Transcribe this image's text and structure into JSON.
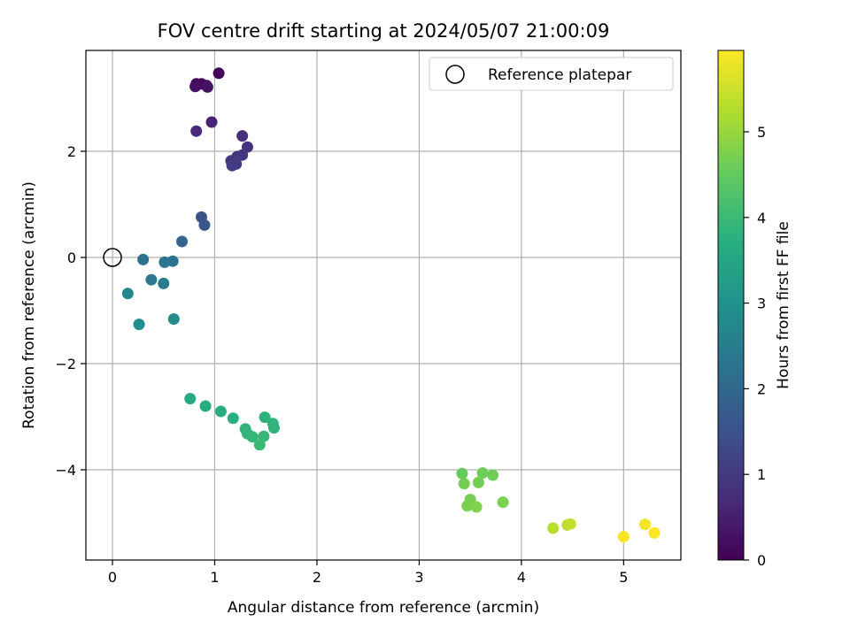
{
  "chart_data": {
    "type": "scatter",
    "title": "FOV centre drift starting at 2024/05/07 21:00:09",
    "xlabel": "Angular distance from reference (arcmin)",
    "ylabel": "Rotation from reference (arcmin)",
    "xlim": [
      -0.26,
      5.56
    ],
    "ylim": [
      -5.7,
      3.9
    ],
    "xticks": [
      0,
      1,
      2,
      3,
      4,
      5
    ],
    "yticks": [
      -4,
      -2,
      0,
      2
    ],
    "grid": true,
    "colormap": "viridis",
    "colorbar": {
      "label": "Hours from first FF file",
      "range": [
        0,
        5.95
      ],
      "ticks": [
        0,
        1,
        2,
        3,
        4,
        5
      ]
    },
    "legend": {
      "position": "top-right",
      "entries": [
        {
          "label": "Reference platepar",
          "marker": "open-circle"
        }
      ]
    },
    "reference_point": {
      "x": 0,
      "y": 0
    },
    "points": [
      {
        "x": 1.04,
        "y": 3.47,
        "t": 0.05
      },
      {
        "x": 0.82,
        "y": 3.27,
        "t": 0.1
      },
      {
        "x": 0.87,
        "y": 3.27,
        "t": 0.15
      },
      {
        "x": 0.92,
        "y": 3.24,
        "t": 0.2
      },
      {
        "x": 0.81,
        "y": 3.22,
        "t": 0.25
      },
      {
        "x": 0.93,
        "y": 3.21,
        "t": 0.3
      },
      {
        "x": 0.97,
        "y": 2.55,
        "t": 0.6
      },
      {
        "x": 0.82,
        "y": 2.38,
        "t": 0.7
      },
      {
        "x": 1.27,
        "y": 2.29,
        "t": 0.8
      },
      {
        "x": 1.32,
        "y": 2.08,
        "t": 0.85
      },
      {
        "x": 1.27,
        "y": 1.93,
        "t": 0.9
      },
      {
        "x": 1.22,
        "y": 1.9,
        "t": 0.92
      },
      {
        "x": 1.16,
        "y": 1.82,
        "t": 0.95
      },
      {
        "x": 1.21,
        "y": 1.76,
        "t": 1.0
      },
      {
        "x": 1.17,
        "y": 1.73,
        "t": 1.05
      },
      {
        "x": 0.87,
        "y": 0.76,
        "t": 1.5
      },
      {
        "x": 0.9,
        "y": 0.61,
        "t": 1.6
      },
      {
        "x": 0.68,
        "y": 0.3,
        "t": 1.9
      },
      {
        "x": 0.3,
        "y": -0.04,
        "t": 2.2
      },
      {
        "x": 0.59,
        "y": -0.07,
        "t": 2.25
      },
      {
        "x": 0.51,
        "y": -0.09,
        "t": 2.3
      },
      {
        "x": 0.38,
        "y": -0.42,
        "t": 2.4
      },
      {
        "x": 0.5,
        "y": -0.49,
        "t": 2.45
      },
      {
        "x": 0.15,
        "y": -0.68,
        "t": 2.7
      },
      {
        "x": 0.6,
        "y": -1.16,
        "t": 2.8
      },
      {
        "x": 0.26,
        "y": -1.26,
        "t": 2.85
      },
      {
        "x": 0.76,
        "y": -2.66,
        "t": 3.6
      },
      {
        "x": 0.91,
        "y": -2.8,
        "t": 3.65
      },
      {
        "x": 1.06,
        "y": -2.9,
        "t": 3.7
      },
      {
        "x": 1.18,
        "y": -3.03,
        "t": 3.75
      },
      {
        "x": 1.49,
        "y": -3.01,
        "t": 3.8
      },
      {
        "x": 1.57,
        "y": -3.13,
        "t": 3.82
      },
      {
        "x": 1.3,
        "y": -3.23,
        "t": 3.85
      },
      {
        "x": 1.58,
        "y": -3.21,
        "t": 3.87
      },
      {
        "x": 1.32,
        "y": -3.32,
        "t": 3.9
      },
      {
        "x": 1.37,
        "y": -3.38,
        "t": 3.92
      },
      {
        "x": 1.48,
        "y": -3.37,
        "t": 3.95
      },
      {
        "x": 1.44,
        "y": -3.53,
        "t": 4.0
      },
      {
        "x": 3.42,
        "y": -4.07,
        "t": 4.55
      },
      {
        "x": 3.62,
        "y": -4.06,
        "t": 4.6
      },
      {
        "x": 3.72,
        "y": -4.1,
        "t": 4.62
      },
      {
        "x": 3.58,
        "y": -4.24,
        "t": 4.65
      },
      {
        "x": 3.44,
        "y": -4.26,
        "t": 4.67
      },
      {
        "x": 3.5,
        "y": -4.56,
        "t": 4.7
      },
      {
        "x": 3.82,
        "y": -4.61,
        "t": 4.72
      },
      {
        "x": 3.47,
        "y": -4.68,
        "t": 4.75
      },
      {
        "x": 3.56,
        "y": -4.7,
        "t": 4.78
      },
      {
        "x": 4.31,
        "y": -5.1,
        "t": 5.3
      },
      {
        "x": 4.45,
        "y": -5.04,
        "t": 5.35
      },
      {
        "x": 4.48,
        "y": -5.02,
        "t": 5.4
      },
      {
        "x": 5.21,
        "y": -5.03,
        "t": 5.85
      },
      {
        "x": 5.0,
        "y": -5.26,
        "t": 5.9
      },
      {
        "x": 5.3,
        "y": -5.19,
        "t": 5.95
      }
    ]
  }
}
